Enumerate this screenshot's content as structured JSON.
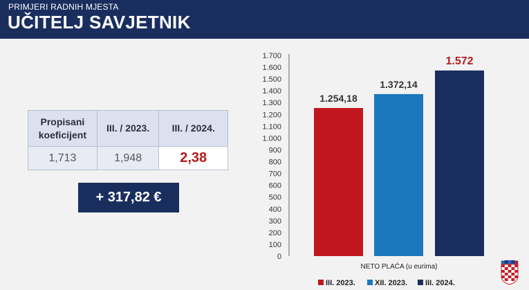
{
  "header": {
    "subtitle": "PRIMJERI RADNIH MJESTA",
    "title": "UČITELJ SAVJETNIK"
  },
  "table": {
    "headers": [
      "Propisani koeficijent",
      "III. / 2023.",
      "III. / 2024."
    ],
    "values": [
      "1,713",
      "1,948",
      "2,38"
    ]
  },
  "increase": "+ 317,82 €",
  "colors": {
    "navy": "#1a2e5e",
    "red": "#c0171e",
    "blue": "#1c78bc",
    "dark_blue": "#1a2e5e",
    "highlight_red": "#b31b1b"
  },
  "chart_data": {
    "type": "bar",
    "categories": [
      "III. 2023.",
      "XII. 2023.",
      "III. 2024."
    ],
    "values": [
      1254.18,
      1372.14,
      1572
    ],
    "value_labels": [
      "1.254,18",
      "1.372,14",
      "1.572"
    ],
    "colors": [
      "#c0171e",
      "#1c78bc",
      "#1a2e5e"
    ],
    "label_colors": [
      "#333333",
      "#333333",
      "#b31b1b"
    ],
    "xlabel": "NETO PLAĆA (u eurima)",
    "ylabel": "",
    "ylim": [
      0,
      1700
    ],
    "yticks": [
      0,
      100,
      200,
      300,
      400,
      500,
      600,
      700,
      800,
      900,
      1000,
      1100,
      1200,
      1300,
      1400,
      1500,
      1600,
      1700
    ],
    "ytick_labels": [
      "0",
      "100",
      "200",
      "300",
      "400",
      "500",
      "600",
      "700",
      "800",
      "900",
      "1.000",
      "1.100",
      "1.200",
      "1.300",
      "1.400",
      "1.500",
      "1.600",
      "1.700"
    ],
    "grid": false,
    "legend": "bottom",
    "legend_entries": [
      "III. 2023.",
      "XII. 2023.",
      "III. 2024."
    ]
  }
}
